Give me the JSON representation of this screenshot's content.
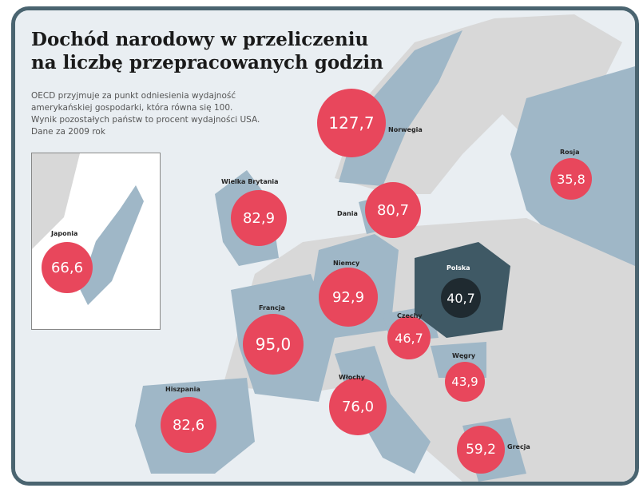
{
  "title_line1": "Dochód narodowy w przeliczeniu",
  "title_line2": "na liczbę przepracowanych godzin",
  "description": [
    "OECD przyjmuje za punkt odniesienia wydajność",
    "amerykańskiej gospodarki, która równa się 100.",
    "Wynik pozostałych państw to procent wydajności USA.",
    "Dane za 2009 rok"
  ],
  "colors": {
    "bubble": "#e8475c",
    "poland_bubble": "#1f2a30",
    "poland_fill": "#3f5965",
    "country_fill": "#9fb7c7",
    "other_land": "#d8d8d8",
    "frame": "#4a6470"
  },
  "countries": [
    {
      "name": "Norwegia",
      "value": "127,7"
    },
    {
      "name": "Wielka Brytania",
      "value": "82,9"
    },
    {
      "name": "Dania",
      "value": "80,7"
    },
    {
      "name": "Rosja",
      "value": "35,8"
    },
    {
      "name": "Japonia",
      "value": "66,6"
    },
    {
      "name": "Niemcy",
      "value": "92,9"
    },
    {
      "name": "Polska",
      "value": "40,7"
    },
    {
      "name": "Francja",
      "value": "95,0"
    },
    {
      "name": "Czechy",
      "value": "46,7"
    },
    {
      "name": "Węgry",
      "value": "43,9"
    },
    {
      "name": "Hiszpania",
      "value": "82,6"
    },
    {
      "name": "Włochy",
      "value": "76,0"
    },
    {
      "name": "Grecja",
      "value": "59,2"
    }
  ]
}
